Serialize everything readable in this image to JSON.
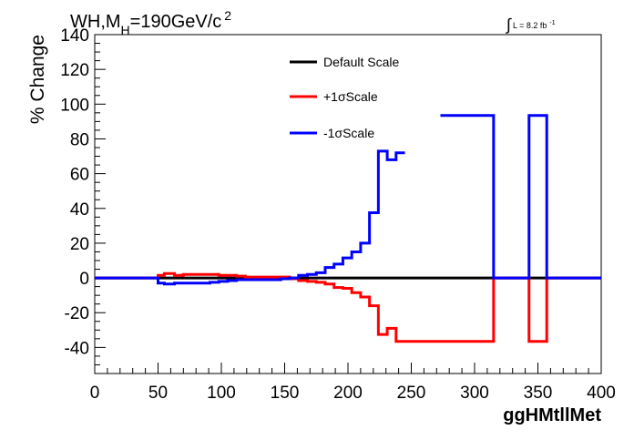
{
  "chart_data": {
    "type": "line",
    "style": "step",
    "title": "WH,M_H=190GeV/c^2",
    "title_parts": {
      "main": "WH,M",
      "subscript": "H",
      "after": "=190GeV/c",
      "superscript": "2"
    },
    "luminosity": {
      "integral_symbol": "∫",
      "text": "L = 8.2 fb",
      "superscript": "-1"
    },
    "xlabel": "ggHMtllMet",
    "ylabel": "% Change",
    "xlim": [
      0,
      400
    ],
    "ylim": [
      -55,
      140
    ],
    "x_ticks": [
      "0",
      "50",
      "100",
      "150",
      "200",
      "250",
      "300",
      "350",
      "400"
    ],
    "y_ticks": [
      "-40",
      "-20",
      "0",
      "20",
      "40",
      "60",
      "80",
      "100",
      "120",
      "140"
    ],
    "x_tick_values": [
      0,
      50,
      100,
      150,
      200,
      250,
      300,
      350,
      400
    ],
    "y_tick_values": [
      -40,
      -20,
      0,
      20,
      40,
      60,
      80,
      100,
      120,
      140
    ],
    "grid": false,
    "legend_position": "top-center",
    "series": [
      {
        "name": "Default Scale",
        "color": "#000000",
        "bin_edges": [
          0,
          400
        ],
        "values": [
          0
        ]
      },
      {
        "name": "+1σScale",
        "color": "#ff0000",
        "bin_edges": [
          0,
          50,
          55,
          63,
          70,
          77,
          84,
          91,
          98,
          105,
          112,
          119,
          126,
          133,
          140,
          147,
          154,
          161,
          168,
          175,
          182,
          189,
          196,
          203,
          210,
          217,
          224,
          231,
          238,
          245,
          252,
          259,
          266,
          273,
          280,
          287,
          294,
          301,
          308,
          315,
          322,
          329,
          336,
          343,
          350,
          357,
          364,
          400
        ],
        "values": [
          0,
          1.5,
          2.5,
          1.5,
          2,
          2,
          2,
          2,
          1.5,
          1.5,
          1,
          0.5,
          0.5,
          0.5,
          0.5,
          0.5,
          -0.5,
          -1.5,
          -2,
          -2.5,
          -3.5,
          -5.5,
          -6,
          -8.5,
          -11,
          -16,
          -32.5,
          -29,
          -36.5,
          -36.5,
          -36.5,
          -36.5,
          -36.5,
          -36.5,
          -36.5,
          -36.5,
          -36.5,
          -36.5,
          -36.5,
          0,
          0,
          0,
          0,
          -36.5,
          -36.5,
          0,
          0
        ]
      },
      {
        "name": "-1σScale",
        "color": "#0000ff",
        "bin_edges": [
          0,
          50,
          55,
          63,
          70,
          77,
          84,
          91,
          98,
          105,
          112,
          119,
          126,
          133,
          140,
          147,
          154,
          161,
          168,
          175,
          182,
          189,
          196,
          203,
          210,
          217,
          224,
          231,
          238,
          245,
          252,
          259,
          266,
          273,
          280,
          287,
          294,
          301,
          308,
          315,
          322,
          329,
          336,
          343,
          350,
          357,
          364,
          400
        ],
        "values": [
          0,
          -3,
          -3.5,
          -3,
          -3,
          -3,
          -3,
          -2.5,
          -2,
          -1.5,
          -1,
          -1,
          -1,
          -1,
          -1,
          -0.5,
          0,
          1.5,
          2,
          3,
          6,
          8,
          11.5,
          15,
          20,
          37.5,
          73,
          68,
          72,
          null,
          null,
          null,
          null,
          93.5,
          93.5,
          93.5,
          93.5,
          93.5,
          93.5,
          0,
          0,
          0,
          0,
          93.5,
          93.5,
          0,
          0
        ]
      }
    ]
  }
}
